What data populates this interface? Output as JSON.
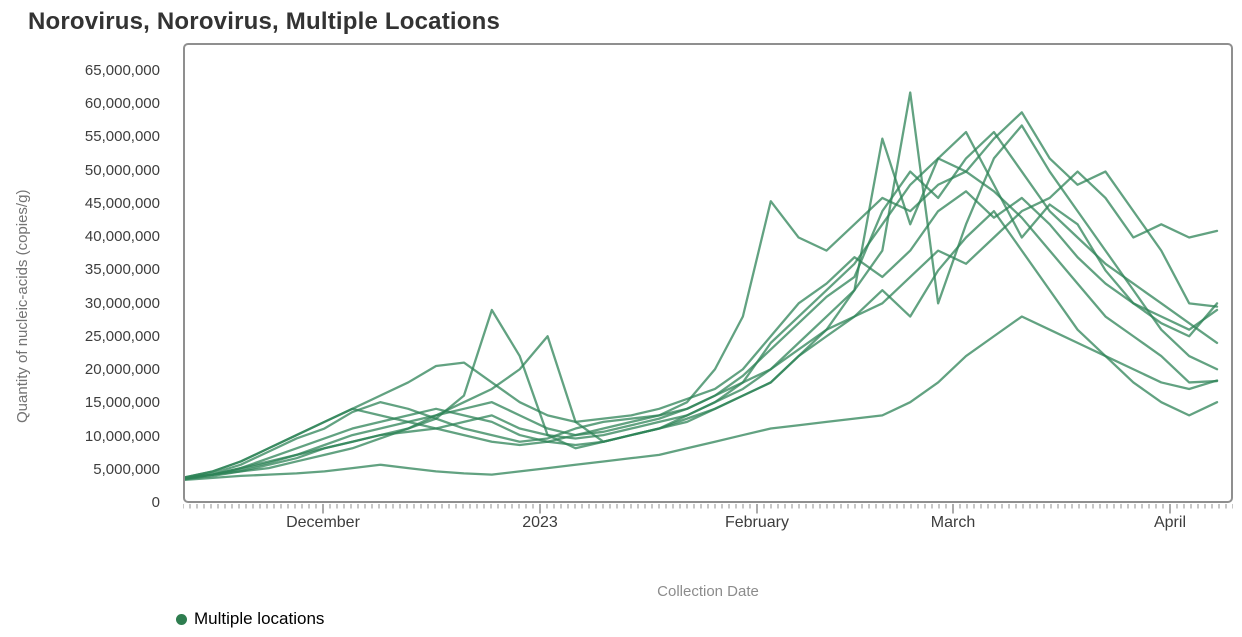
{
  "title": "Norovirus, Norovirus, Multiple Locations",
  "y_axis": {
    "label": "Quantity of nucleic-acids (copies/g)",
    "tick_labels": [
      "0",
      "5,000,000",
      "10,000,000",
      "15,000,000",
      "20,000,000",
      "25,000,000",
      "30,000,000",
      "35,000,000",
      "40,000,000",
      "45,000,000",
      "50,000,000",
      "55,000,000",
      "60,000,000",
      "65,000,000"
    ],
    "min": 0,
    "max": 65000000,
    "tick_step": 5000000
  },
  "x_axis": {
    "label": "Collection Date",
    "ticks": [
      {
        "label": "December",
        "day": 20
      },
      {
        "label": "2023",
        "day": 51
      },
      {
        "label": "February",
        "day": 82
      },
      {
        "label": "March",
        "day": 110
      },
      {
        "label": "April",
        "day": 141
      }
    ],
    "range_days": 150,
    "minor_tick_every_days": 1
  },
  "legend": {
    "label": "Multiple locations",
    "marker_color": "#2e7d4f"
  },
  "style": {
    "line_color": "#2e8357",
    "line_opacity": 0.75,
    "axis_color": "#8f8f8f"
  },
  "chart_data": {
    "type": "line",
    "title": "Norovirus, Norovirus, Multiple Locations",
    "xlabel": "Collection Date",
    "ylabel": "Quantity of nucleic-acids (copies/g)",
    "ylim": [
      0,
      65000000
    ],
    "x_range": "mid-November 2022 to mid-April 2023",
    "series_label": "Multiple locations",
    "value_unit": "copies/g",
    "value_scale": 1000000,
    "x_days": [
      0,
      4,
      8,
      12,
      16,
      20,
      24,
      28,
      32,
      36,
      40,
      44,
      48,
      52,
      56,
      60,
      64,
      68,
      72,
      76,
      80,
      84,
      88,
      92,
      96,
      100,
      104,
      108,
      112,
      116,
      120,
      124,
      128,
      132,
      136,
      140,
      144,
      148
    ],
    "series": [
      {
        "values": [
          3.5,
          4.2,
          5.5,
          7.5,
          9.5,
          11,
          13.5,
          15,
          14,
          12.5,
          11,
          10,
          9,
          9.5,
          11,
          12,
          12.5,
          13,
          15,
          20,
          28,
          45.5,
          40,
          38,
          42,
          46,
          44,
          48,
          50,
          47,
          43,
          38,
          33,
          28,
          25,
          22,
          18,
          18.2
        ]
      },
      {
        "values": [
          3.4,
          4,
          5,
          6,
          7,
          8,
          9,
          10,
          11,
          12.5,
          16,
          29,
          22,
          10,
          8,
          9,
          10,
          11,
          12,
          14,
          16,
          18,
          22,
          26,
          32,
          55,
          42,
          52,
          56,
          48,
          40,
          45,
          42,
          35,
          30,
          28,
          26,
          29
        ]
      },
      {
        "values": [
          3.6,
          4.5,
          6,
          8,
          10,
          12,
          14,
          13,
          12,
          11,
          10,
          9,
          8.5,
          9,
          10,
          11,
          12,
          13,
          14,
          16,
          18,
          20,
          24,
          28,
          32,
          38,
          62,
          30,
          42,
          52,
          57,
          50,
          44,
          38,
          32,
          26,
          22,
          20
        ]
      },
      {
        "values": [
          3.5,
          4,
          4.5,
          5,
          6,
          7,
          8,
          9.5,
          11,
          13,
          15,
          17,
          20,
          25,
          12,
          9,
          10,
          11,
          13,
          15,
          18,
          24,
          28,
          32,
          36,
          42,
          48,
          52,
          50,
          55,
          59,
          52,
          48,
          50,
          44,
          38,
          30,
          29.5
        ]
      },
      {
        "values": [
          3.3,
          3.8,
          4.5,
          5.5,
          6.5,
          8,
          9,
          10,
          10.5,
          11,
          12,
          13,
          11,
          10,
          9.5,
          10,
          11,
          12,
          13,
          15,
          17,
          20,
          23,
          26,
          28,
          30,
          34,
          38,
          36,
          40,
          44,
          46,
          50,
          46,
          40,
          42,
          40,
          41
        ]
      },
      {
        "values": [
          3.2,
          3.5,
          3.8,
          4,
          4.2,
          4.5,
          5,
          5.5,
          5,
          4.5,
          4.2,
          4,
          4.5,
          5,
          5.5,
          6,
          6.5,
          7,
          8,
          9,
          10,
          11,
          11.5,
          12,
          12.5,
          13,
          15,
          18,
          22,
          25,
          28,
          26,
          24,
          22,
          20,
          18,
          17,
          18.3
        ]
      },
      {
        "values": [
          3.4,
          4,
          5,
          6.5,
          8,
          9.5,
          11,
          12,
          13,
          14,
          13,
          12,
          10,
          9,
          8.5,
          9,
          10,
          11,
          12.5,
          14,
          16,
          18,
          22,
          25,
          28,
          32,
          28,
          35,
          40,
          44,
          38,
          32,
          26,
          22,
          18,
          15,
          13,
          15
        ]
      },
      {
        "values": [
          3.6,
          4.5,
          6,
          8,
          10,
          12,
          14,
          16,
          18,
          20.5,
          21,
          18,
          15,
          13,
          12,
          12.5,
          13,
          14,
          15.5,
          17,
          20,
          25,
          30,
          33,
          37,
          34,
          38,
          44,
          47,
          43,
          46,
          42,
          37,
          33,
          30,
          27,
          25,
          30
        ]
      },
      {
        "values": [
          3.5,
          4,
          4.8,
          5.8,
          7,
          8.5,
          10,
          11,
          12,
          13,
          14,
          15,
          13,
          11,
          10,
          10.5,
          11.5,
          12.5,
          14,
          16,
          19,
          23,
          27,
          31,
          34,
          44,
          50,
          46,
          52,
          56,
          50,
          44,
          40,
          36,
          33,
          30,
          27,
          24
        ]
      }
    ]
  }
}
